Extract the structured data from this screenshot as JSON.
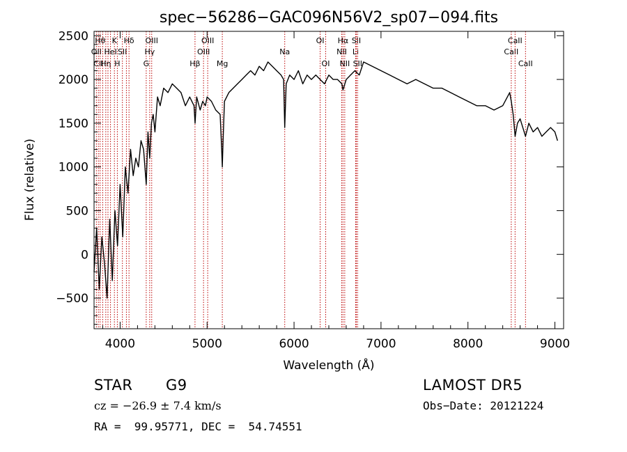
{
  "chart_data": {
    "type": "line",
    "title": "spec−56286−GAC096N56V2_sp07−094.fits",
    "xlabel": "Wavelength (Å)",
    "ylabel": "Flux (relative)",
    "xlim": [
      3700,
      9100
    ],
    "ylim": [
      -850,
      2550
    ],
    "xticks": [
      4000,
      5000,
      6000,
      7000,
      8000,
      9000
    ],
    "yticks": [
      -500,
      0,
      500,
      1000,
      1500,
      2000,
      2500
    ],
    "line_color": "#000000",
    "marker_color": "#bb0000",
    "series": [
      {
        "x": [
          3700,
          3730,
          3760,
          3790,
          3820,
          3850,
          3880,
          3910,
          3940,
          3970,
          4000,
          4030,
          4060,
          4090,
          4120,
          4150,
          4180,
          4210,
          4240,
          4270,
          4300,
          4320,
          4340,
          4360,
          4380,
          4400,
          4430,
          4460,
          4500,
          4550,
          4600,
          4650,
          4700,
          4750,
          4800,
          4850,
          4862,
          4880,
          4920,
          4950,
          4980,
          5000,
          5050,
          5100,
          5150,
          5168,
          5175,
          5184,
          5200,
          5250,
          5300,
          5350,
          5400,
          5450,
          5500,
          5550,
          5600,
          5650,
          5700,
          5750,
          5800,
          5850,
          5880,
          5893,
          5910,
          5950,
          6000,
          6050,
          6100,
          6150,
          6200,
          6250,
          6300,
          6350,
          6400,
          6450,
          6500,
          6550,
          6563,
          6600,
          6650,
          6700,
          6750,
          6800,
          6900,
          7000,
          7100,
          7200,
          7300,
          7400,
          7500,
          7600,
          7700,
          7800,
          7900,
          8000,
          8100,
          8200,
          8300,
          8400,
          8480,
          8498,
          8520,
          8542,
          8570,
          8600,
          8662,
          8700,
          8750,
          8800,
          8850,
          8900,
          8950,
          9000,
          9030
        ],
        "y": [
          -200,
          300,
          -400,
          200,
          -100,
          -500,
          400,
          -300,
          500,
          100,
          800,
          200,
          1000,
          700,
          1200,
          900,
          1100,
          1000,
          1300,
          1200,
          800,
          1400,
          1100,
          1500,
          1600,
          1400,
          1800,
          1700,
          1900,
          1850,
          1950,
          1900,
          1850,
          1700,
          1800,
          1700,
          1500,
          1800,
          1650,
          1750,
          1700,
          1800,
          1750,
          1650,
          1600,
          1200,
          1000,
          1300,
          1750,
          1850,
          1900,
          1950,
          2000,
          2050,
          2100,
          2050,
          2150,
          2100,
          2200,
          2150,
          2100,
          2050,
          2000,
          1450,
          1950,
          2050,
          2000,
          2100,
          1950,
          2050,
          2000,
          2050,
          2000,
          1950,
          2050,
          2000,
          2000,
          1950,
          1880,
          2000,
          2050,
          2100,
          2050,
          2200,
          2150,
          2100,
          2050,
          2000,
          1950,
          2000,
          1950,
          1900,
          1900,
          1850,
          1800,
          1750,
          1700,
          1700,
          1650,
          1700,
          1850,
          1750,
          1600,
          1350,
          1500,
          1550,
          1350,
          1500,
          1400,
          1450,
          1350,
          1400,
          1450,
          1400,
          1300
        ]
      }
    ],
    "line_markers": [
      {
        "x": 3750,
        "label": "CII",
        "row": 3
      },
      {
        "x": 3727,
        "label": "OII",
        "row": 2
      },
      {
        "x": 3770,
        "label": "Hθ",
        "row": 1
      },
      {
        "x": 3800,
        "label": "",
        "row": 0
      },
      {
        "x": 3835,
        "label": "Hη",
        "row": 3
      },
      {
        "x": 3860,
        "label": "",
        "row": 0
      },
      {
        "x": 3889,
        "label": "HeI",
        "row": 2
      },
      {
        "x": 3934,
        "label": "K",
        "row": 1
      },
      {
        "x": 3968,
        "label": "H",
        "row": 3
      },
      {
        "x": 4026,
        "label": "SII",
        "row": 2
      },
      {
        "x": 4072,
        "label": "",
        "row": 0
      },
      {
        "x": 4102,
        "label": "Hδ",
        "row": 1
      },
      {
        "x": 4300,
        "label": "G",
        "row": 3
      },
      {
        "x": 4340,
        "label": "Hγ",
        "row": 2
      },
      {
        "x": 4363,
        "label": "OIII",
        "row": 1
      },
      {
        "x": 4861,
        "label": "Hβ",
        "row": 3
      },
      {
        "x": 4959,
        "label": "OIII",
        "row": 2
      },
      {
        "x": 5007,
        "label": "OIII",
        "row": 1
      },
      {
        "x": 5175,
        "label": "Mg",
        "row": 3
      },
      {
        "x": 5893,
        "label": "Na",
        "row": 2
      },
      {
        "x": 6300,
        "label": "OI",
        "row": 1
      },
      {
        "x": 6364,
        "label": "OI",
        "row": 3
      },
      {
        "x": 6548,
        "label": "NII",
        "row": 2
      },
      {
        "x": 6563,
        "label": "Hα",
        "row": 1
      },
      {
        "x": 6583,
        "label": "NII",
        "row": 3
      },
      {
        "x": 6708,
        "label": "Li",
        "row": 2
      },
      {
        "x": 6716,
        "label": "SII",
        "row": 1
      },
      {
        "x": 6731,
        "label": "SII",
        "row": 3
      },
      {
        "x": 8498,
        "label": "CaII",
        "row": 2
      },
      {
        "x": 8542,
        "label": "CaII",
        "row": 1
      },
      {
        "x": 8662,
        "label": "CaII",
        "row": 3
      }
    ]
  },
  "info": {
    "object_class": "STAR",
    "subclass": "G9",
    "cz": "cz = −26.9 ± 7.4 km/s",
    "coords": "RA =  99.95771, DEC =  54.74551",
    "survey": "LAMOST DR5",
    "obs_date": "Obs−Date: 20121224"
  }
}
